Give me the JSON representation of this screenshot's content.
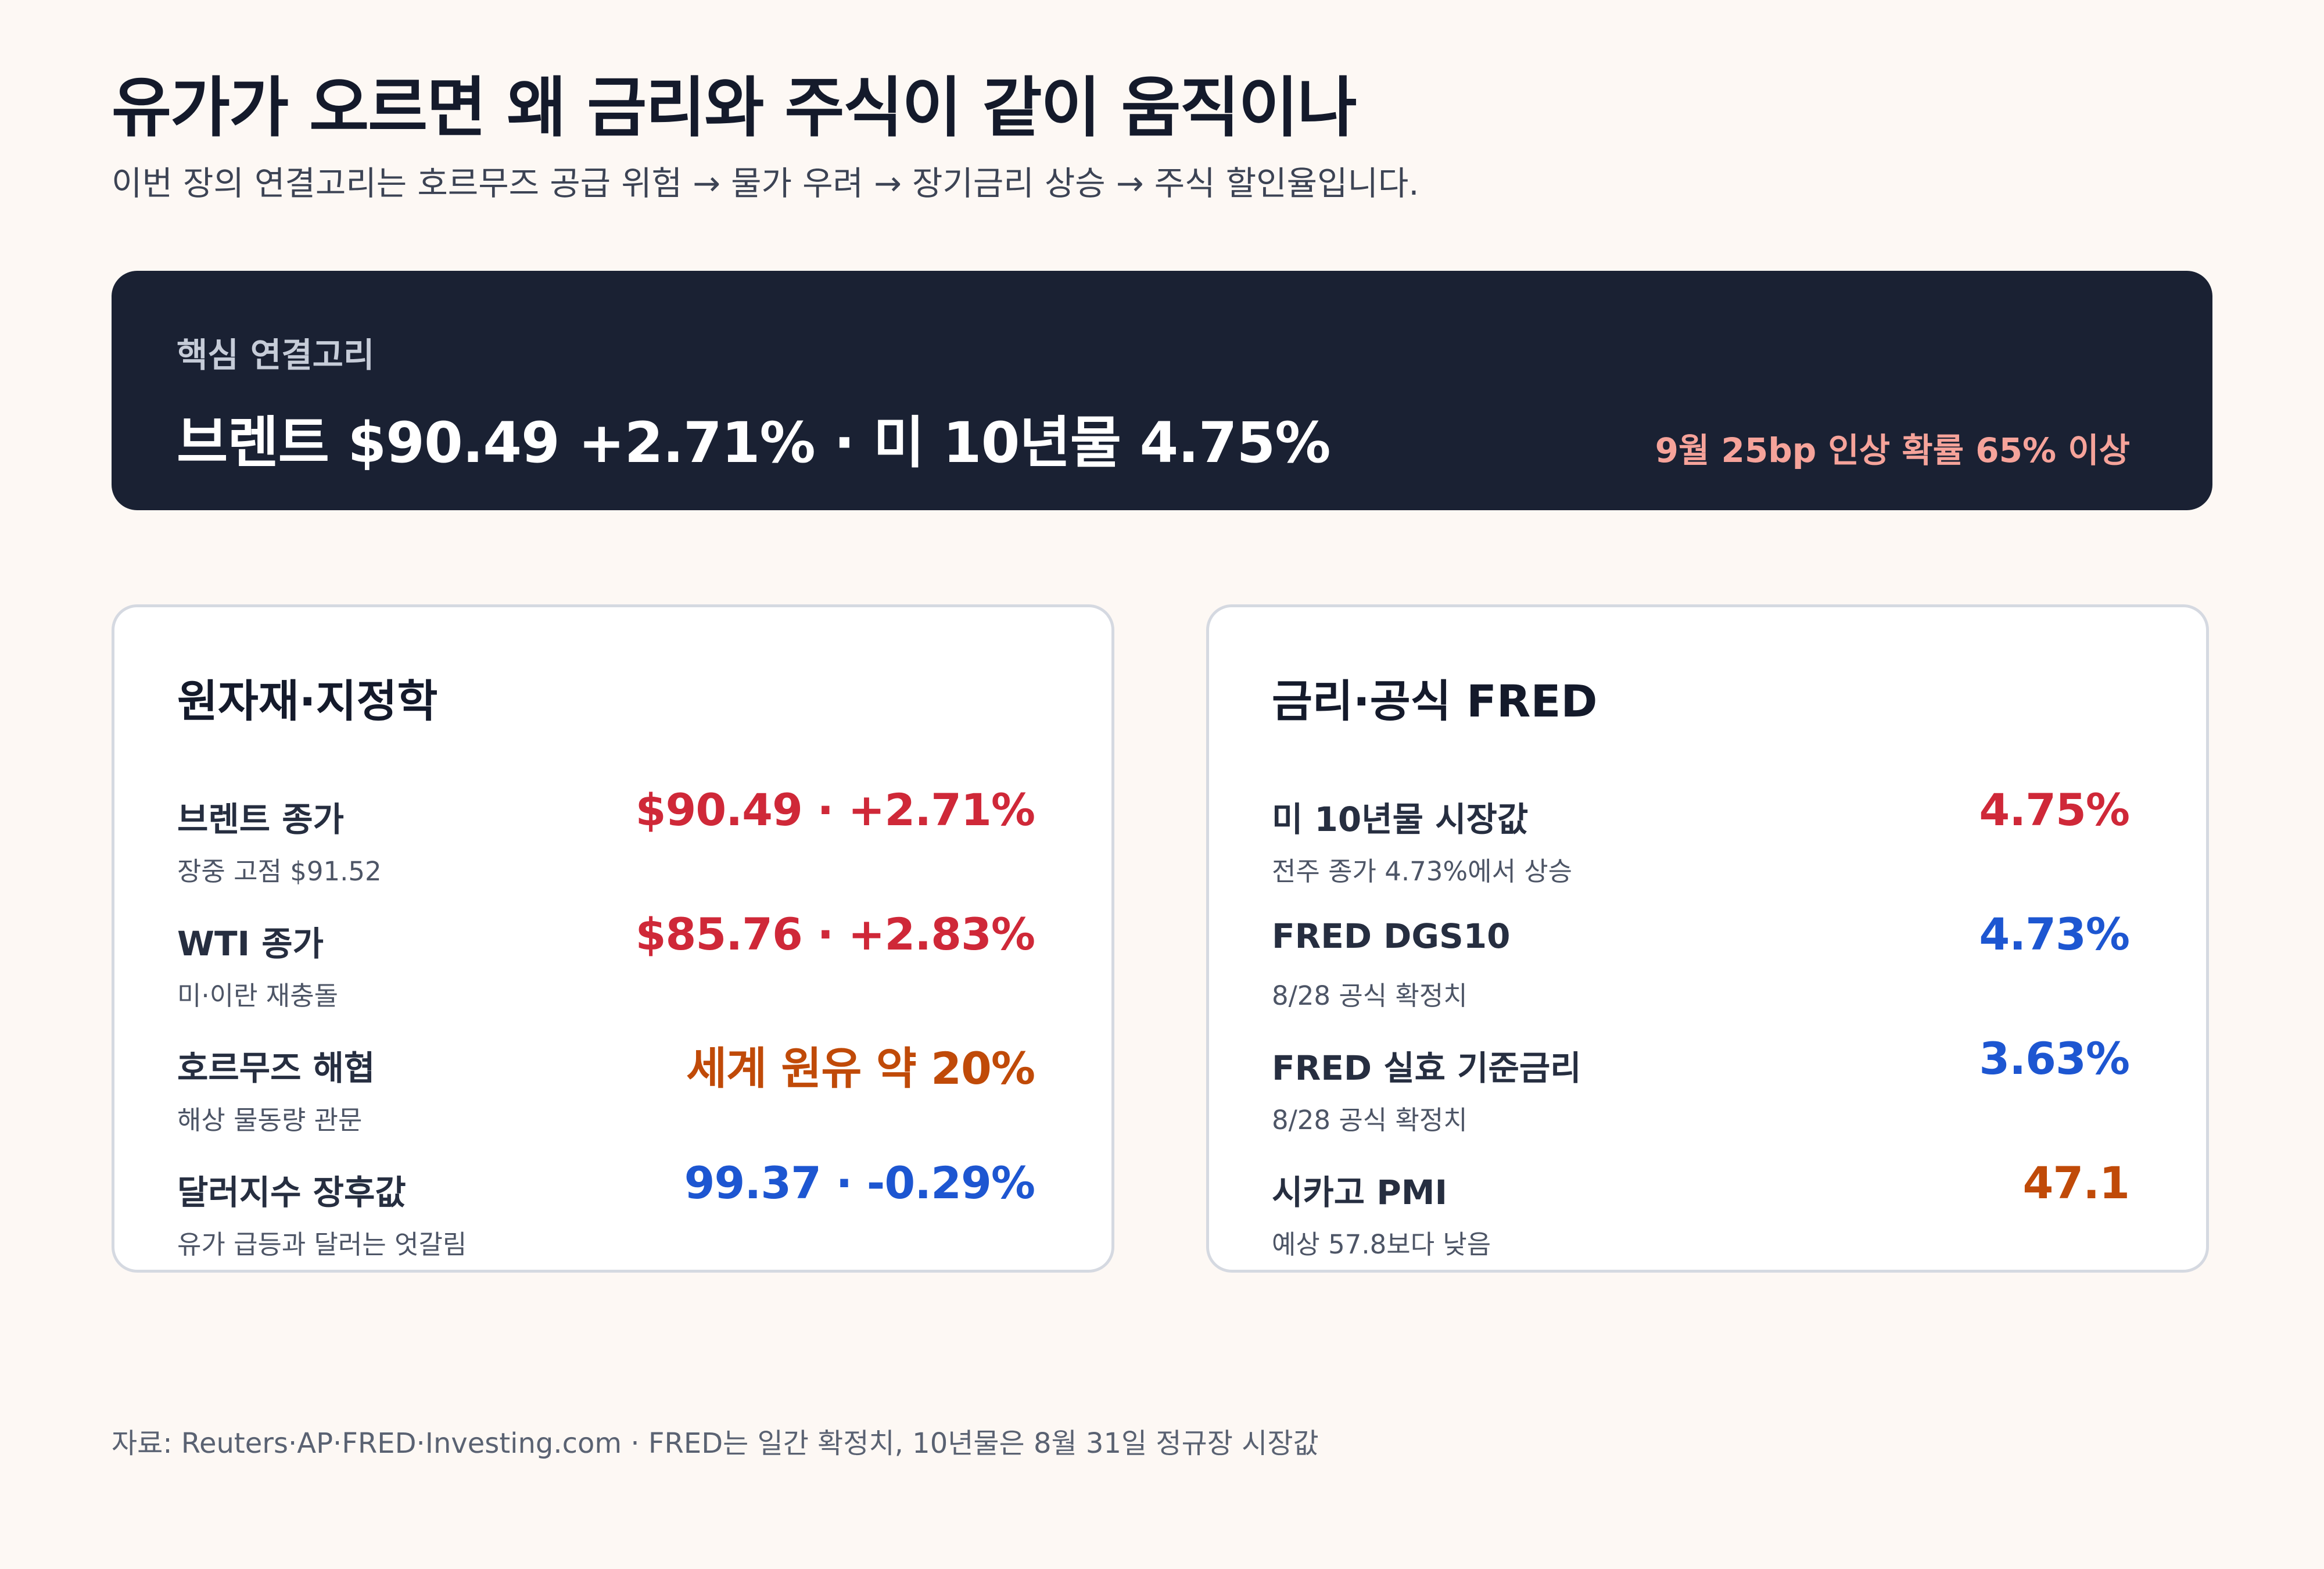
{
  "header": {
    "title": "유가가 오르면 왜 금리와 주식이 같이 움직이나",
    "subtitle": "이번 장의 연결고리는 호르무즈 공급 위험 → 물가 우려 → 장기금리 상승 → 주식 할인율입니다."
  },
  "banner": {
    "label": "핵심 연결고리",
    "headline": "브렌트 $90.49 +2.71% · 미 10년물 4.75%",
    "note": "9월 25bp 인상 확률 65% 이상"
  },
  "colors": {
    "background": "#fdf8f4",
    "banner_bg": "#1a2133",
    "banner_note": "#f6a39a",
    "up_red": "#cf2838",
    "warn_orange": "#c04a08",
    "info_blue": "#1d56d1",
    "card_border": "#d5d9e1"
  },
  "commodities": {
    "title": "원자재·지정학",
    "rows": [
      {
        "label": "브렌트 종가",
        "sub": "장중 고점 $91.52",
        "value": "$90.49 · +2.71%",
        "tone": "red"
      },
      {
        "label": "WTI 종가",
        "sub": "미·이란 재충돌",
        "value": "$85.76 · +2.83%",
        "tone": "red"
      },
      {
        "label": "호르무즈 해협",
        "sub": "해상 물동량 관문",
        "value": "세계 원유 약 20%",
        "tone": "orange"
      },
      {
        "label": "달러지수 장후값",
        "sub": "유가 급등과 달러는 엇갈림",
        "value": "99.37 · -0.29%",
        "tone": "blue"
      }
    ]
  },
  "rates": {
    "title": "금리·공식 FRED",
    "rows": [
      {
        "label": "미 10년물 시장값",
        "sub": "전주 종가 4.73%에서 상승",
        "value": "4.75%",
        "tone": "red"
      },
      {
        "label": "FRED DGS10",
        "sub": "8/28 공식 확정치",
        "value": "4.73%",
        "tone": "blue"
      },
      {
        "label": "FRED 실효 기준금리",
        "sub": "8/28 공식 확정치",
        "value": "3.63%",
        "tone": "blue"
      },
      {
        "label": "시카고 PMI",
        "sub": "예상 57.8보다 낮음",
        "value": "47.1",
        "tone": "orange"
      }
    ]
  },
  "footer": {
    "source": "자료: Reuters·AP·FRED·Investing.com · FRED는 일간 확정치, 10년물은 8월 31일 정규장 시장값"
  }
}
